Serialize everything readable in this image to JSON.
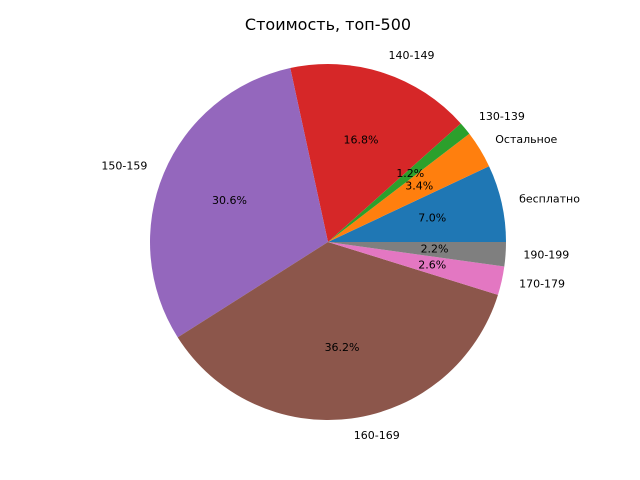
{
  "chart_data": {
    "type": "pie",
    "title": "Стоимость, топ-500",
    "start_angle_deg": 0,
    "direction": "counterclockwise",
    "slices": [
      {
        "label": "бесплатно",
        "value": 7.0,
        "pct_text": "7.0%",
        "color": "#1f77b4"
      },
      {
        "label": "Остальное",
        "value": 3.4,
        "pct_text": "3.4%",
        "color": "#ff7f0e"
      },
      {
        "label": "130-139",
        "value": 1.2,
        "pct_text": "1.2%",
        "color": "#2ca02c"
      },
      {
        "label": "140-149",
        "value": 16.8,
        "pct_text": "16.8%",
        "color": "#d62728"
      },
      {
        "label": "150-159",
        "value": 30.6,
        "pct_text": "30.6%",
        "color": "#9467bd"
      },
      {
        "label": "160-169",
        "value": 36.2,
        "pct_text": "36.2%",
        "color": "#8c564b"
      },
      {
        "label": "170-179",
        "value": 2.6,
        "pct_text": "2.6%",
        "color": "#e377c2"
      },
      {
        "label": "190-199",
        "value": 2.2,
        "pct_text": "2.2%",
        "color": "#7f7f7f"
      }
    ]
  }
}
